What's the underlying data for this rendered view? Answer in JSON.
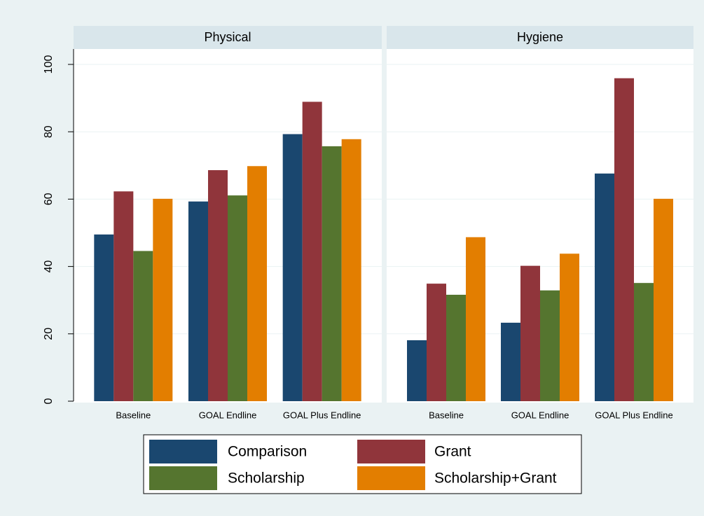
{
  "chart_data": [
    {
      "type": "bar",
      "title": "Physical",
      "categories": [
        "Baseline",
        "GOAL Endline",
        "GOAL Plus Endline"
      ],
      "series": [
        {
          "name": "Comparison",
          "color": "#1a476f",
          "values": [
            49.5,
            59.3,
            79.3
          ]
        },
        {
          "name": "Grant",
          "color": "#90353b",
          "values": [
            62.3,
            68.6,
            88.9
          ]
        },
        {
          "name": "Scholarship",
          "color": "#55752f",
          "values": [
            44.6,
            61.1,
            75.7
          ]
        },
        {
          "name": "Scholarship+Grant",
          "color": "#e37e00",
          "values": [
            60.1,
            69.8,
            77.8
          ]
        }
      ],
      "ylim": [
        0,
        100
      ],
      "yticks": [
        0,
        20,
        40,
        60,
        80,
        100
      ],
      "grid": true
    },
    {
      "type": "bar",
      "title": "Hygiene",
      "categories": [
        "Baseline",
        "GOAL Endline",
        "GOAL Plus Endline"
      ],
      "series": [
        {
          "name": "Comparison",
          "color": "#1a476f",
          "values": [
            18.1,
            23.3,
            67.6
          ]
        },
        {
          "name": "Grant",
          "color": "#90353b",
          "values": [
            34.9,
            40.2,
            95.9
          ]
        },
        {
          "name": "Scholarship",
          "color": "#55752f",
          "values": [
            31.6,
            32.9,
            35.1
          ]
        },
        {
          "name": "Scholarship+Grant",
          "color": "#e37e00",
          "values": [
            48.7,
            43.8,
            60.1
          ]
        }
      ],
      "ylim": [
        0,
        100
      ],
      "yticks": [
        0,
        20,
        40,
        60,
        80,
        100
      ],
      "grid": true
    }
  ]
}
